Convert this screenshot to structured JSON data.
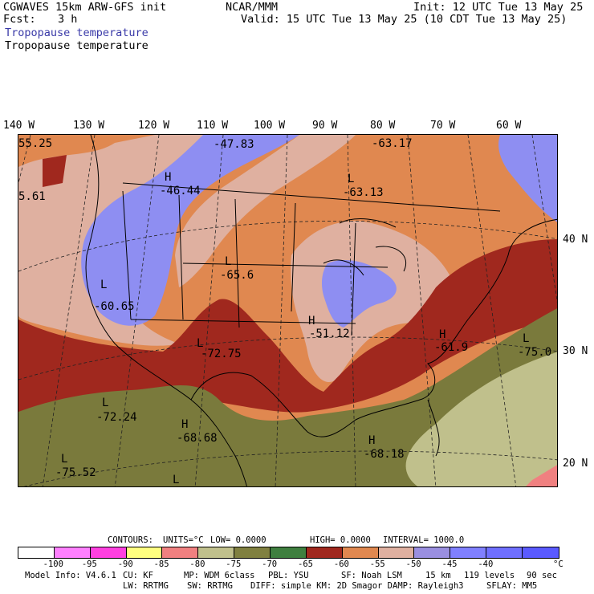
{
  "header": {
    "model": "CGWAVES 15km ARW-GFS init",
    "fcst_label": "Fcst:",
    "fcst_value": "3 h",
    "org": "NCAR/MMM",
    "init": "Init: 12 UTC Tue 13 May 25",
    "valid": "Valid: 15 UTC Tue 13 May 25 (10 CDT Tue 13 May 25)",
    "field_title_1": "Tropopause temperature",
    "field_title_2": "Tropopause temperature"
  },
  "longitude_labels": [
    "140 W",
    "130 W",
    "120 W",
    "110 W",
    "100 W",
    "90 W",
    "80 W",
    "70 W",
    "60 W"
  ],
  "latitude_labels": [
    "40 N",
    "30 N",
    "20 N"
  ],
  "map_labels": [
    {
      "kind": "",
      "value": "55.25"
    },
    {
      "kind": "",
      "value": "-47.83"
    },
    {
      "kind": "",
      "value": "-63.17"
    },
    {
      "kind": "H",
      "value": "-46.44"
    },
    {
      "kind": "L",
      "value": "-63.13"
    },
    {
      "kind": "",
      "value": "5.61"
    },
    {
      "kind": "L",
      "value": "-65.6"
    },
    {
      "kind": "L",
      "value": "-60.65"
    },
    {
      "kind": "H",
      "value": "-51.12"
    },
    {
      "kind": "L",
      "value": "-72.75"
    },
    {
      "kind": "H",
      "value": "-61.9"
    },
    {
      "kind": "L",
      "value": "-75.0"
    },
    {
      "kind": "L",
      "value": "-72.24"
    },
    {
      "kind": "H",
      "value": "-68.68"
    },
    {
      "kind": "H",
      "value": "-68.18"
    },
    {
      "kind": "L",
      "value": "-75.52"
    },
    {
      "kind": "L",
      "value": ""
    }
  ],
  "contour_info": {
    "contours": "CONTOURS:",
    "units": "UNITS=°C",
    "low": "LOW= 0.0000",
    "high": "HIGH= 0.0000",
    "interval": "INTERVAL= 1000.0"
  },
  "colorbar": {
    "colors": [
      "#ffffff",
      "#ff80ff",
      "#ff40e0",
      "#ffff80",
      "#f08080",
      "#c0c08c",
      "#808040",
      "#3f7f3f",
      "#a0281e",
      "#e08850",
      "#dfb0a0",
      "#9a8fe0",
      "#8080ff",
      "#6f6fff",
      "#5a5aff"
    ],
    "labels": [
      "-100",
      "-95",
      "-90",
      "-85",
      "-80",
      "-75",
      "-70",
      "-65",
      "-60",
      "-55",
      "-50",
      "-45",
      "-40"
    ],
    "unit": "°C"
  },
  "footer": {
    "model_info": "Model Info: V4.6.1",
    "cu": "CU: KF",
    "mp": "MP: WDM 6class",
    "pbl": "PBL: YSU",
    "sf": "SF: Noah LSM",
    "grid": "15 km",
    "levels": "119 levels",
    "dt": "90 sec",
    "lw": "LW: RRTMG",
    "sw": "SW: RRTMG",
    "diff": "DIFF: simple KM: 2D Smagor DAMP: Rayleigh3",
    "sflay": "SFLAY: MM5"
  },
  "field_colors": {
    "purple_high": "#8e8ef2",
    "pink": "#dfb0a0",
    "orange": "#e08850",
    "red": "#a0281e",
    "olive": "#7a7a3c",
    "khaki": "#c0c08c"
  }
}
